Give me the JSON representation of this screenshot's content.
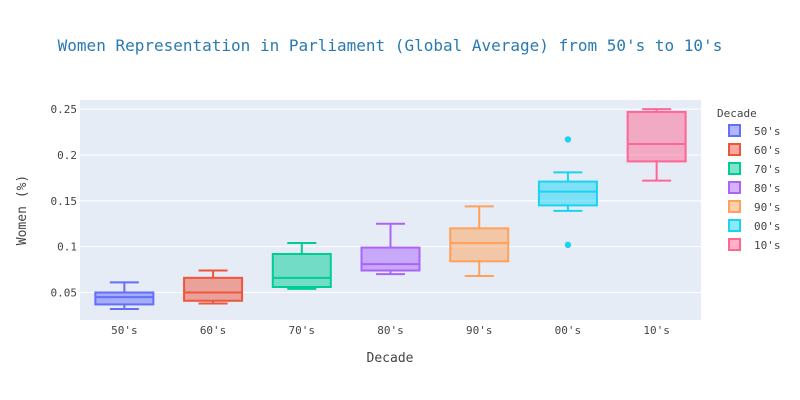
{
  "colors": {
    "title": "#2a7ab0",
    "plot_bg": "#e5ecf6",
    "grid": "#ffffff",
    "text": "#444444"
  },
  "chart_data": {
    "type": "box",
    "title": "Women Representation in Parliament (Global Average) from 50's to 10's",
    "xlabel": "Decade",
    "ylabel": "Women (%)",
    "ylim": [
      0.02,
      0.26
    ],
    "yticks": [
      0.05,
      0.1,
      0.15,
      0.2,
      0.25
    ],
    "ytick_labels": [
      "0.05",
      "0.1",
      "0.15",
      "0.2",
      "0.25"
    ],
    "grid": true,
    "legend_title": "Decade",
    "legend_position": "right",
    "categories": [
      "50's",
      "60's",
      "70's",
      "80's",
      "90's",
      "00's",
      "10's"
    ],
    "series": [
      {
        "name": "50's",
        "color": "#636efa",
        "min": 0.032,
        "q1": 0.037,
        "median": 0.045,
        "q3": 0.05,
        "max": 0.061,
        "outliers": []
      },
      {
        "name": "60's",
        "color": "#ef553b",
        "min": 0.038,
        "q1": 0.041,
        "median": 0.05,
        "q3": 0.066,
        "max": 0.074,
        "outliers": []
      },
      {
        "name": "70's",
        "color": "#00cc96",
        "min": 0.054,
        "q1": 0.056,
        "median": 0.066,
        "q3": 0.092,
        "max": 0.104,
        "outliers": []
      },
      {
        "name": "80's",
        "color": "#ab63fa",
        "min": 0.07,
        "q1": 0.074,
        "median": 0.081,
        "q3": 0.099,
        "max": 0.125,
        "outliers": []
      },
      {
        "name": "90's",
        "color": "#ffa15a",
        "min": 0.068,
        "q1": 0.084,
        "median": 0.104,
        "q3": 0.12,
        "max": 0.144,
        "outliers": []
      },
      {
        "name": "00's",
        "color": "#19d3f3",
        "min": 0.139,
        "q1": 0.145,
        "median": 0.16,
        "q3": 0.171,
        "max": 0.181,
        "outliers": [
          0.217,
          0.102
        ]
      },
      {
        "name": "10's",
        "color": "#ff6692",
        "min": 0.172,
        "q1": 0.193,
        "median": 0.212,
        "q3": 0.247,
        "max": 0.25,
        "outliers": []
      }
    ]
  }
}
